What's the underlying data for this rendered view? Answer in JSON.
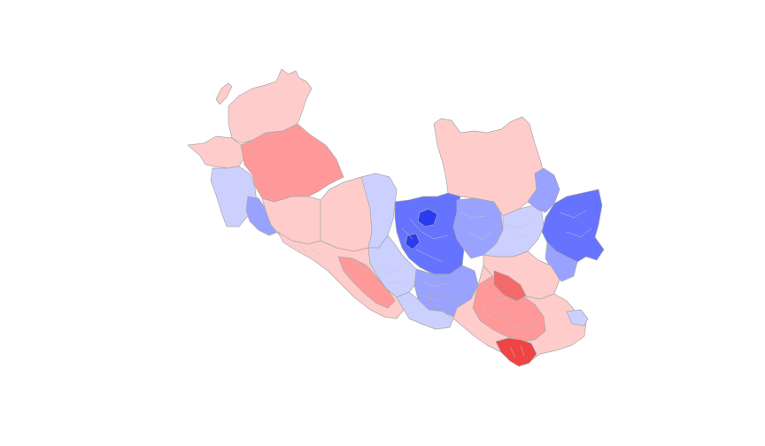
{
  "map": {
    "palette": {
      "background": "#ffffff",
      "border": "#a8a8a8",
      "red_light": "#ffcccc",
      "red_mid": "#ff9999",
      "red_strong": "#f26a6a",
      "red_max": "#ee4444",
      "blue_light": "#ccd0ff",
      "blue_mid": "#99a2ff",
      "blue_strong": "#6673ff",
      "blue_max": "#2a3cf2"
    },
    "legend": null,
    "title": null
  }
}
